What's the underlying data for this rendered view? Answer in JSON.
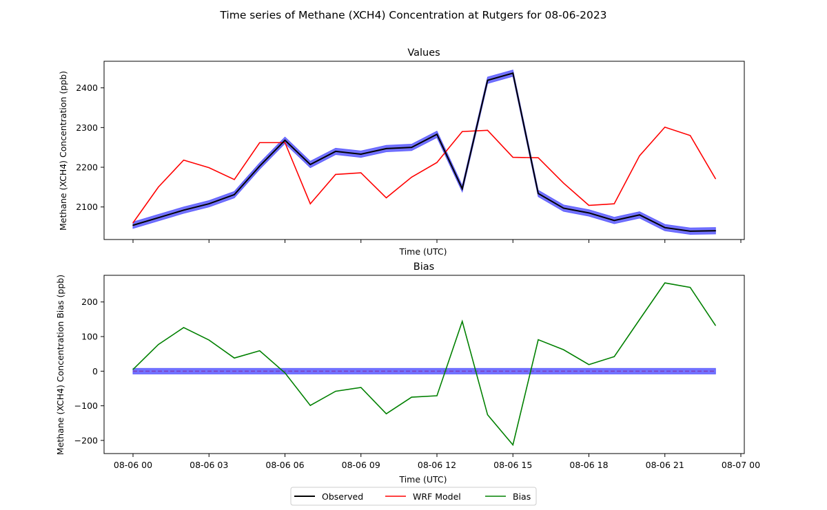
{
  "figure": {
    "title": "Time series of Methane (XCH4) Concentration at Rutgers for 08-06-2023"
  },
  "legend": {
    "placement": "bottom-center",
    "entries": [
      {
        "label": "Observed",
        "color": "#000000"
      },
      {
        "label": "WRF Model",
        "color": "#e41a1c"
      },
      {
        "label": "Bias",
        "color": "#008000"
      }
    ]
  },
  "colors": {
    "observed": "#000000",
    "model": "#ff0000",
    "bias": "#008000",
    "band": "#5b5bff",
    "zero_line": "#7b3fbf"
  },
  "chart_data": [
    {
      "type": "line",
      "title": "Values",
      "xlabel": "Time (UTC)",
      "ylabel": "Methane (XCH4) Concentration (ppb)",
      "x_tick_labels_shown": false,
      "ylim": [
        2018,
        2467
      ],
      "yticks": [
        2100,
        2200,
        2300,
        2400
      ],
      "x": [
        "08-06 00",
        "08-06 01",
        "08-06 02",
        "08-06 03",
        "08-06 04",
        "08-06 05",
        "08-06 06",
        "08-06 07",
        "08-06 08",
        "08-06 09",
        "08-06 10",
        "08-06 11",
        "08-06 12",
        "08-06 13",
        "08-06 14",
        "08-06 15",
        "08-06 16",
        "08-06 17",
        "08-06 18",
        "08-06 19",
        "08-06 20",
        "08-06 21",
        "08-06 22",
        "08-06 23"
      ],
      "series": [
        {
          "name": "Observed",
          "values": [
            2054,
            2073,
            2092,
            2108,
            2131,
            2203,
            2268,
            2207,
            2240,
            2233,
            2247,
            2250,
            2283,
            2146,
            2419,
            2437,
            2134,
            2097,
            2085,
            2066,
            2080,
            2048,
            2039,
            2040
          ],
          "uncertainty": 8
        },
        {
          "name": "WRF Model",
          "values": [
            2060,
            2150,
            2218,
            2199,
            2169,
            2262,
            2262,
            2108,
            2182,
            2186,
            2123,
            2175,
            2212,
            2290,
            2293,
            2225,
            2224,
            2160,
            2104,
            2108,
            2229,
            2301,
            2280,
            2171
          ]
        }
      ]
    },
    {
      "type": "line",
      "title": "Bias",
      "xlabel": "Time (UTC)",
      "ylabel": "Methane (XCH4) Concentration Bias (ppb)",
      "ylim": [
        -238,
        277
      ],
      "yticks": [
        -200,
        -100,
        0,
        100,
        200
      ],
      "xlim": [
        "08-05 22:52",
        "08-07 00:55"
      ],
      "x_tick_labels": [
        "08-06 00",
        "08-06 03",
        "08-06 06",
        "08-06 09",
        "08-06 12",
        "08-06 15",
        "08-06 18",
        "08-06 21",
        "08-07 00"
      ],
      "x_tick_hours": [
        0,
        3,
        6,
        9,
        12,
        15,
        18,
        21,
        24
      ],
      "x": [
        "08-06 00",
        "08-06 01",
        "08-06 02",
        "08-06 03",
        "08-06 04",
        "08-06 05",
        "08-06 06",
        "08-06 07",
        "08-06 08",
        "08-06 09",
        "08-06 10",
        "08-06 11",
        "08-06 12",
        "08-06 13",
        "08-06 14",
        "08-06 15",
        "08-06 16",
        "08-06 17",
        "08-06 18",
        "08-06 19",
        "08-06 20",
        "08-06 21",
        "08-06 22",
        "08-06 23"
      ],
      "series": [
        {
          "name": "Bias",
          "values": [
            5,
            77,
            126,
            90,
            38,
            59,
            -5,
            -99,
            -58,
            -47,
            -123,
            -75,
            -71,
            144,
            -126,
            -213,
            91,
            62,
            19,
            42,
            149,
            255,
            242,
            132
          ]
        }
      ],
      "reference_line": {
        "value": 0,
        "style": "dashed",
        "band": 8
      }
    }
  ]
}
